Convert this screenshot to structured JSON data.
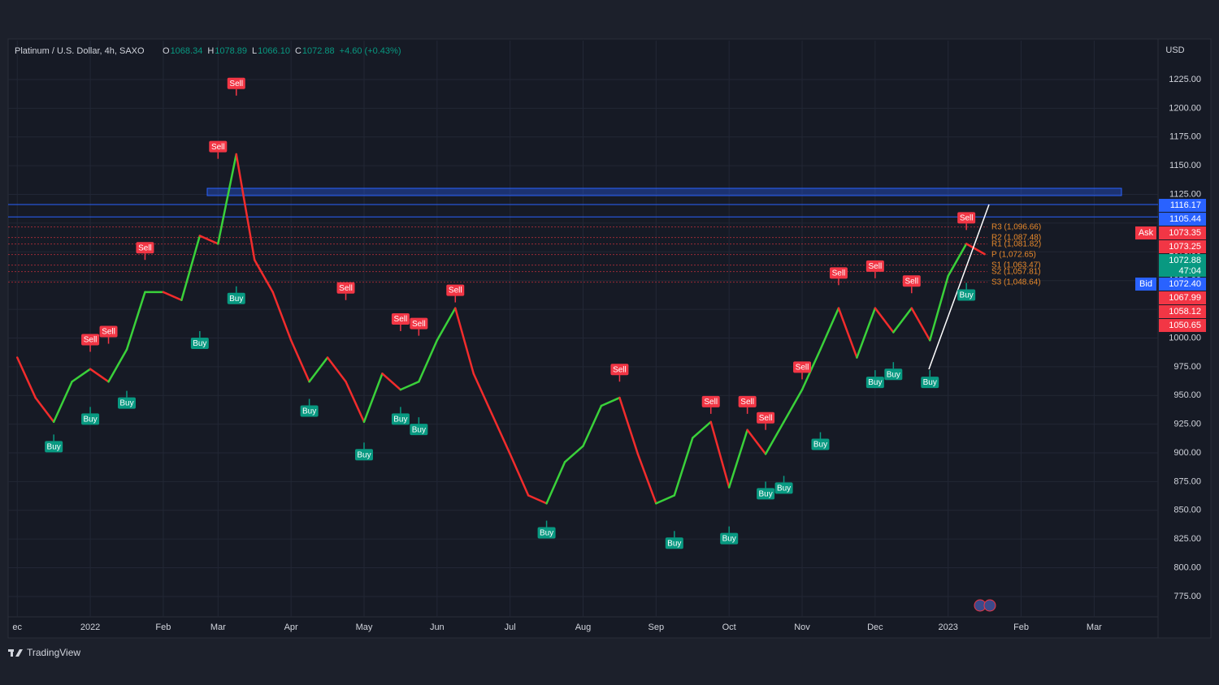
{
  "chart_data": {
    "type": "line",
    "title": "Platinum / U.S. Dollar, 4h, SAXO",
    "ohlc": [
      {
        "key": "O",
        "value": "1068.34"
      },
      {
        "key": "H",
        "value": "1078.89"
      },
      {
        "key": "L",
        "value": "1066.10"
      },
      {
        "key": "C",
        "value": "1072.88"
      }
    ],
    "change": "+4.60 (+0.43%)",
    "currency": "USD",
    "brand": "TradingView",
    "categories": [
      "ec",
      null,
      null,
      null,
      "2022",
      null,
      null,
      null,
      "Feb",
      null,
      null,
      "Mar",
      null,
      null,
      null,
      "Apr",
      null,
      null,
      null,
      "May",
      null,
      null,
      null,
      "Jun",
      null,
      null,
      null,
      "Jul",
      null,
      null,
      null,
      "Aug",
      null,
      null,
      null,
      "Sep",
      null,
      null,
      null,
      "Oct",
      null,
      null,
      null,
      "Nov",
      null,
      null,
      null,
      "Dec",
      null,
      null,
      null,
      "2023",
      null,
      null,
      null,
      "Feb",
      null,
      null,
      null,
      "Mar",
      null,
      null,
      null
    ],
    "values": [
      983,
      948,
      927,
      962,
      973,
      962,
      990,
      1040,
      1040,
      1033,
      1089,
      1082,
      1160,
      1068,
      1040,
      998,
      962,
      983,
      962,
      927,
      969,
      955,
      962,
      998,
      1026,
      969,
      934,
      899,
      863,
      856,
      892,
      906,
      941,
      948,
      899,
      856,
      863,
      913,
      927,
      870,
      920,
      899,
      927,
      955,
      990,
      1026,
      983,
      1026,
      1005,
      1026,
      998,
      1054,
      1082,
      1073,
      null,
      null,
      null,
      null,
      null,
      null,
      null,
      null,
      null
    ],
    "up_color": "#3ad13a",
    "down_color": "#f22c2c",
    "sell_signals": {
      "label": "Sell",
      "color": "#f23645",
      "values": [
        null,
        null,
        null,
        null,
        988,
        995,
        null,
        1068,
        null,
        null,
        null,
        1156,
        1211,
        null,
        null,
        null,
        null,
        null,
        1033,
        null,
        null,
        1006,
        1002,
        null,
        1031,
        null,
        null,
        null,
        null,
        null,
        null,
        null,
        null,
        962,
        null,
        null,
        null,
        null,
        934,
        null,
        934,
        920,
        null,
        964,
        null,
        1046,
        null,
        1052,
        null,
        1039,
        null,
        null,
        1094,
        null,
        null,
        null,
        null,
        null,
        null,
        null,
        null,
        null,
        null
      ]
    },
    "buy_signals": {
      "label": "Buy",
      "color": "#089981",
      "values": [
        null,
        null,
        916,
        null,
        940,
        null,
        954,
        null,
        null,
        null,
        1006,
        null,
        1045,
        null,
        null,
        null,
        947,
        null,
        null,
        909,
        null,
        940,
        931,
        null,
        null,
        null,
        null,
        null,
        null,
        841,
        null,
        null,
        null,
        null,
        null,
        null,
        832,
        null,
        null,
        836,
        null,
        875,
        880,
        null,
        918,
        null,
        null,
        972,
        979,
        null,
        972,
        null,
        1048,
        null,
        null,
        null,
        null,
        null,
        null,
        null,
        null,
        null,
        null
      ]
    },
    "levels": [
      {
        "value": 1116.17,
        "color": "#2962ff"
      },
      {
        "value": 1105.44,
        "color": "#2962ff"
      }
    ],
    "pivots": [
      {
        "value": 1096.66,
        "label": "R3 (1,096.66)"
      },
      {
        "value": 1087.48,
        "label": "R2 (1,087.48)"
      },
      {
        "value": 1081.82,
        "label": "R1 (1,081.82)"
      },
      {
        "value": 1072.65,
        "label": "P (1,072.65)"
      },
      {
        "value": 1063.47,
        "label": "S1 (1,063.47)"
      },
      {
        "value": 1057.81,
        "label": "S2 (1,057.81)"
      },
      {
        "value": 1048.64,
        "label": "S3 (1,048.64)"
      }
    ],
    "pivot_color": "#e8892b",
    "price_tags": [
      {
        "value": 1116.17,
        "label": "1116.17",
        "color": "#2962ff"
      },
      {
        "value": 1105.44,
        "label": "1105.44",
        "color": "#2962ff"
      },
      {
        "value": 1073.35,
        "label": "1073.35",
        "color": "#f23645",
        "tag": "Ask"
      },
      {
        "value": 1073.25,
        "label": "1073.25",
        "color": "#f23645"
      },
      {
        "value": 1072.88,
        "label": "1072.88",
        "color": "#089981",
        "countdown": "47:04"
      },
      {
        "value": 1072.4,
        "label": "1072.40",
        "color": "#2962ff",
        "tag": "Bid"
      },
      {
        "value": 1067.99,
        "label": "1067.99",
        "color": "#f23645"
      },
      {
        "value": 1058.12,
        "label": "1058.12",
        "color": "#f23645"
      },
      {
        "value": 1050.65,
        "label": "1050.65",
        "color": "#f23645"
      }
    ],
    "ylim": [
      757.3,
      1258.9
    ],
    "yticks": [
      {
        "value": 775,
        "label": "775.00"
      },
      {
        "value": 800,
        "label": "800.00"
      },
      {
        "value": 825,
        "label": "825.00"
      },
      {
        "value": 850,
        "label": "850.00"
      },
      {
        "value": 875,
        "label": "875.00"
      },
      {
        "value": 900,
        "label": "900.00"
      },
      {
        "value": 925,
        "label": "925.00"
      },
      {
        "value": 950,
        "label": "950.00"
      },
      {
        "value": 975,
        "label": "975.00"
      },
      {
        "value": 1000,
        "label": "1000.00"
      },
      {
        "value": 1025,
        "label": "1025.00"
      },
      {
        "value": 1050,
        "label": "1050.00"
      },
      {
        "value": 1075,
        "label": "1075.00"
      },
      {
        "value": 1100,
        "label": "1100.00"
      },
      {
        "value": 1125,
        "label": "1125.00"
      },
      {
        "value": 1150,
        "label": "1150.00"
      },
      {
        "value": 1175,
        "label": "1175.00"
      },
      {
        "value": 1200,
        "label": "1200.00"
      },
      {
        "value": 1225,
        "label": "1225.00"
      }
    ],
    "grid": true
  }
}
